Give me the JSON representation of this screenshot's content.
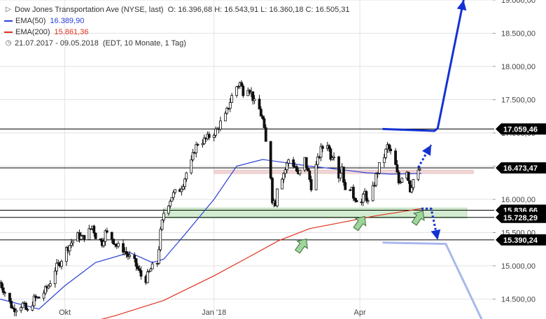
{
  "legend": {
    "title": "Dow Jones Transportation Ave (NYSE, last)",
    "ohlc": "O: 16.396,68  H: 16.543,91  L: 16.360,18  C: 16.505,31",
    "ema50_label": "EMA(50)",
    "ema50_value": "16.389,90",
    "ema200_label": "EMA(200)",
    "ema200_value": "15.861,36",
    "range": "21.07.2017 - 09.05.2018",
    "range_note": "(EDT, 10 Monate, 1 Tag)",
    "icons": {
      "toggle": "collapse-toggle-icon",
      "clock": "clock-icon"
    }
  },
  "colors": {
    "candle": "#111111",
    "ema50": "#2a3fd6",
    "ema200": "#e0321e",
    "projection": "#1432d2",
    "projection_light": "#a9b8ec",
    "support_zone": "#d3ecd1",
    "resistance_zone": "#f1d6d6",
    "arrow_fill": "#9fd49a",
    "grid": "#e2e2e2",
    "label_box": "#000000"
  },
  "chart_data": {
    "type": "candlestick",
    "title": "Dow Jones Transportation Ave (NYSE, last)",
    "ylim": [
      14200,
      19000
    ],
    "y_ticks": [
      14500,
      15000,
      15500,
      16000,
      16500,
      17000,
      17500,
      18000,
      18500,
      19000
    ],
    "y_tick_labels": [
      "14.500,00",
      "15.000,00",
      "15.500,00",
      "16.000,00",
      "16.500,00",
      "17.000,00",
      "17.500,00",
      "18.000,00",
      "18.500,00",
      "19.000,00"
    ],
    "x_range": [
      "2017-08-22",
      "2018-06-22"
    ],
    "x_ticks": [
      {
        "label": "Okt",
        "date": "2017-10-01"
      },
      {
        "label": "Jan '18",
        "date": "2018-01-01"
      },
      {
        "label": "Apr",
        "date": "2018-04-01"
      }
    ],
    "price_path": [
      [
        "2017-08-22",
        14750
      ],
      [
        "2017-08-25",
        14600
      ],
      [
        "2017-08-30",
        14350
      ],
      [
        "2017-09-05",
        14420
      ],
      [
        "2017-09-08",
        14300
      ],
      [
        "2017-09-12",
        14500
      ],
      [
        "2017-09-15",
        14520
      ],
      [
        "2017-09-18",
        14600
      ],
      [
        "2017-09-21",
        14700
      ],
      [
        "2017-09-25",
        14950
      ],
      [
        "2017-09-28",
        15050
      ],
      [
        "2017-10-02",
        15250
      ],
      [
        "2017-10-05",
        15350
      ],
      [
        "2017-10-09",
        15450
      ],
      [
        "2017-10-12",
        15420
      ],
      [
        "2017-10-16",
        15520
      ],
      [
        "2017-10-18",
        15600
      ],
      [
        "2017-10-20",
        15450
      ],
      [
        "2017-10-24",
        15350
      ],
      [
        "2017-10-26",
        15500
      ],
      [
        "2017-10-30",
        15420
      ],
      [
        "2017-11-02",
        15300
      ],
      [
        "2017-11-06",
        15250
      ],
      [
        "2017-11-09",
        15150
      ],
      [
        "2017-11-13",
        15050
      ],
      [
        "2017-11-15",
        14950
      ],
      [
        "2017-11-17",
        14850
      ],
      [
        "2017-11-20",
        14800
      ],
      [
        "2017-11-23",
        14950
      ],
      [
        "2017-11-27",
        15050
      ],
      [
        "2017-11-29",
        15500
      ],
      [
        "2017-12-01",
        15800
      ],
      [
        "2017-12-04",
        15950
      ],
      [
        "2017-12-06",
        16050
      ],
      [
        "2017-12-08",
        16100
      ],
      [
        "2017-12-11",
        16150
      ],
      [
        "2017-12-13",
        16250
      ],
      [
        "2017-12-15",
        16400
      ],
      [
        "2017-12-18",
        16550
      ],
      [
        "2017-12-20",
        16750
      ],
      [
        "2017-12-22",
        16850
      ],
      [
        "2017-12-27",
        16900
      ],
      [
        "2017-12-29",
        16950
      ],
      [
        "2018-01-03",
        17050
      ],
      [
        "2018-01-05",
        17150
      ],
      [
        "2018-01-08",
        17250
      ],
      [
        "2018-01-10",
        17400
      ],
      [
        "2018-01-12",
        17550
      ],
      [
        "2018-01-15",
        17700
      ],
      [
        "2018-01-17",
        17750
      ],
      [
        "2018-01-19",
        17620
      ],
      [
        "2018-01-22",
        17700
      ],
      [
        "2018-01-24",
        17600
      ],
      [
        "2018-01-26",
        17450
      ],
      [
        "2018-01-29",
        17350
      ],
      [
        "2018-01-31",
        17200
      ],
      [
        "2018-02-02",
        16850
      ],
      [
        "2018-02-05",
        16350
      ],
      [
        "2018-02-06",
        16000
      ],
      [
        "2018-02-08",
        15950
      ],
      [
        "2018-02-09",
        16200
      ],
      [
        "2018-02-12",
        16350
      ],
      [
        "2018-02-14",
        16450
      ],
      [
        "2018-02-16",
        16600
      ],
      [
        "2018-02-20",
        16500
      ],
      [
        "2018-02-22",
        16350
      ],
      [
        "2018-02-26",
        16600
      ],
      [
        "2018-02-28",
        16400
      ],
      [
        "2018-03-02",
        16200
      ],
      [
        "2018-03-05",
        16500
      ],
      [
        "2018-03-08",
        16750
      ],
      [
        "2018-03-12",
        16850
      ],
      [
        "2018-03-14",
        16650
      ],
      [
        "2018-03-16",
        16700
      ],
      [
        "2018-03-19",
        16350
      ],
      [
        "2018-03-21",
        16500
      ],
      [
        "2018-03-23",
        16100
      ],
      [
        "2018-03-26",
        16200
      ],
      [
        "2018-03-28",
        16050
      ],
      [
        "2018-04-02",
        15950
      ],
      [
        "2018-04-04",
        16100
      ],
      [
        "2018-04-06",
        15950
      ],
      [
        "2018-04-09",
        16150
      ],
      [
        "2018-04-11",
        16350
      ],
      [
        "2018-04-13",
        16500
      ],
      [
        "2018-04-16",
        16650
      ],
      [
        "2018-04-18",
        16800
      ],
      [
        "2018-04-20",
        16700
      ],
      [
        "2018-04-23",
        16500
      ],
      [
        "2018-04-25",
        16250
      ],
      [
        "2018-04-27",
        16350
      ],
      [
        "2018-04-30",
        16450
      ],
      [
        "2018-05-02",
        16150
      ],
      [
        "2018-05-04",
        16300
      ],
      [
        "2018-05-07",
        16400
      ],
      [
        "2018-05-09",
        16505
      ]
    ],
    "series": [
      {
        "name": "EMA(50)",
        "points": [
          [
            "2017-08-22",
            14500
          ],
          [
            "2017-09-15",
            14350
          ],
          [
            "2017-10-01",
            14700
          ],
          [
            "2017-10-20",
            15050
          ],
          [
            "2017-11-10",
            15200
          ],
          [
            "2017-11-24",
            15050
          ],
          [
            "2017-12-01",
            15100
          ],
          [
            "2017-12-15",
            15500
          ],
          [
            "2018-01-01",
            16000
          ],
          [
            "2018-01-15",
            16500
          ],
          [
            "2018-01-31",
            16600
          ],
          [
            "2018-02-15",
            16550
          ],
          [
            "2018-03-01",
            16500
          ],
          [
            "2018-03-20",
            16450
          ],
          [
            "2018-04-05",
            16400
          ],
          [
            "2018-04-20",
            16380
          ],
          [
            "2018-05-09",
            16390
          ]
        ]
      },
      {
        "name": "EMA(200)",
        "points": [
          [
            "2017-10-01",
            14050
          ],
          [
            "2017-11-01",
            14250
          ],
          [
            "2017-12-01",
            14480
          ],
          [
            "2018-01-01",
            14850
          ],
          [
            "2018-01-20",
            15100
          ],
          [
            "2018-02-10",
            15380
          ],
          [
            "2018-03-01",
            15560
          ],
          [
            "2018-03-20",
            15650
          ],
          [
            "2018-04-10",
            15750
          ],
          [
            "2018-05-09",
            15861
          ]
        ]
      }
    ],
    "horizontal_levels": [
      {
        "value": 17059.46,
        "label": "17.059,46"
      },
      {
        "value": 16473.47,
        "label": "16.473,47"
      },
      {
        "value": 15836.66,
        "label": "15.836,66"
      },
      {
        "value": 15728.29,
        "label": "15.728,29"
      },
      {
        "value": 15390.24,
        "label": "15.390,24"
      }
    ],
    "zones": [
      {
        "kind": "resistance",
        "from": [
          "2018-01-01",
          16390
        ],
        "to": [
          "2018-06-10",
          16440
        ]
      },
      {
        "kind": "support",
        "from": [
          "2017-12-01",
          15720
        ],
        "to": [
          "2018-06-06",
          15870
        ]
      }
    ],
    "annotations": {
      "up_arrow_points": [
        [
          "2018-02-24",
          15300
        ],
        [
          "2018-04-01",
          15640
        ],
        [
          "2018-05-07",
          15720
        ]
      ],
      "dotted_up_path": [
        [
          "2018-05-07",
          16480
        ],
        [
          "2018-05-15",
          16820
        ]
      ],
      "dotted_down_path": [
        [
          "2018-05-09",
          15860
        ],
        [
          "2018-05-15",
          15860
        ],
        [
          "2018-05-19",
          15390
        ]
      ],
      "solid_up_path": [
        [
          "2018-04-15",
          17059
        ],
        [
          "2018-05-17",
          17030
        ],
        [
          "2018-05-19",
          17070
        ],
        [
          "2018-06-04",
          19000
        ]
      ],
      "light_down_path": [
        [
          "2018-04-15",
          15350
        ],
        [
          "2018-05-24",
          15330
        ],
        [
          "2018-06-17",
          14100
        ]
      ]
    }
  }
}
